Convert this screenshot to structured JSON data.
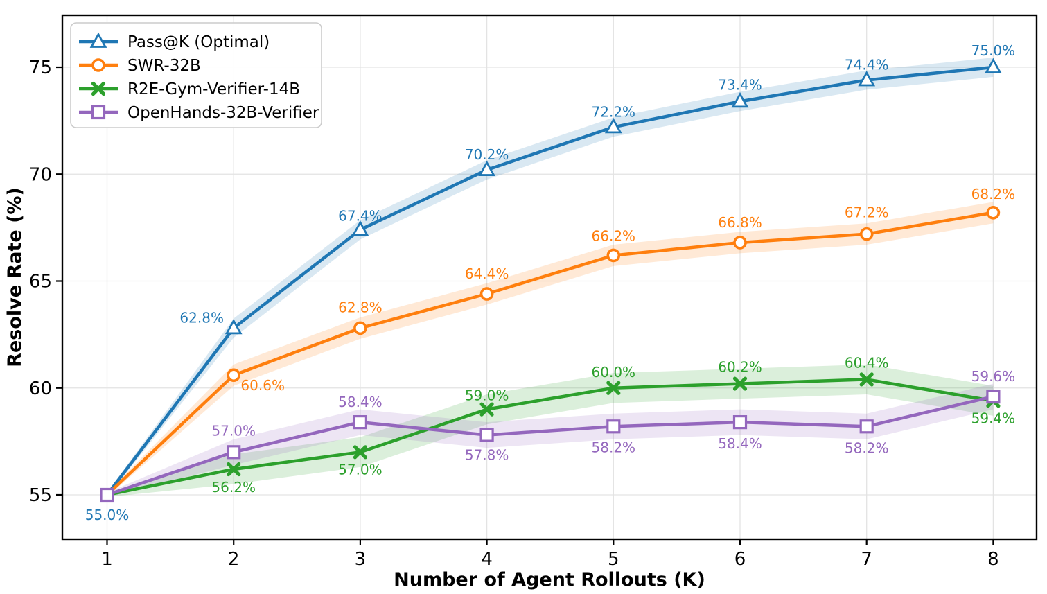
{
  "chart_data": {
    "type": "line",
    "title": "",
    "xlabel": "Number of Agent Rollouts (K)",
    "ylabel": "Resolve Rate (%)",
    "x": [
      1,
      2,
      3,
      4,
      5,
      6,
      7,
      8
    ],
    "x_tick_labels": [
      "1",
      "2",
      "3",
      "4",
      "5",
      "6",
      "7",
      "8"
    ],
    "y_tick_values": [
      55,
      60,
      65,
      70,
      75
    ],
    "y_tick_labels": [
      "55",
      "60",
      "65",
      "70",
      "75"
    ],
    "xlim": [
      0.64,
      8.34
    ],
    "ylim": [
      52.9,
      77.4
    ],
    "grid": true,
    "legend_position": "upper-left",
    "grid_color": "#e3e3e3",
    "spine_color": "#000000",
    "legend_border_color": "#cccccc",
    "series": [
      {
        "name": "Pass@K (Optimal)",
        "color": "#1f77b4",
        "marker": "triangle",
        "marker_first": false,
        "values": [
          55.0,
          62.8,
          67.4,
          70.2,
          72.2,
          73.4,
          74.4,
          75.0
        ],
        "labels": [
          "55.0%",
          "62.8%",
          "67.4%",
          "70.2%",
          "72.2%",
          "73.4%",
          "74.4%",
          "75.0%"
        ],
        "label_offsets": [
          [
            0,
            36
          ],
          [
            -46,
            -8
          ],
          [
            0,
            -13
          ],
          [
            0,
            -15
          ],
          [
            0,
            -15
          ],
          [
            0,
            -17
          ],
          [
            0,
            -15
          ],
          [
            0,
            -17
          ]
        ],
        "band_halfwidths": [
          0.1,
          0.45,
          0.45,
          0.45,
          0.45,
          0.45,
          0.45,
          0.45
        ]
      },
      {
        "name": "SWR-32B",
        "color": "#ff7f0e",
        "marker": "circle",
        "marker_first": false,
        "values": [
          55.0,
          60.6,
          62.8,
          64.4,
          66.2,
          66.8,
          67.2,
          68.2
        ],
        "labels": [
          null,
          "60.6%",
          "62.8%",
          "64.4%",
          "66.2%",
          "66.8%",
          "67.2%",
          "68.2%"
        ],
        "label_offsets": [
          null,
          [
            42,
            22
          ],
          [
            0,
            -23
          ],
          [
            0,
            -22
          ],
          [
            0,
            -21
          ],
          [
            0,
            -22
          ],
          [
            0,
            -24
          ],
          [
            0,
            -20
          ]
        ],
        "band_halfwidths": [
          0.1,
          0.5,
          0.5,
          0.5,
          0.5,
          0.5,
          0.5,
          0.5
        ]
      },
      {
        "name": "R2E-Gym-Verifier-14B",
        "color": "#2ca02c",
        "marker": "x",
        "marker_first": false,
        "values": [
          55.0,
          56.2,
          57.0,
          59.0,
          60.0,
          60.2,
          60.4,
          59.4
        ],
        "labels": [
          null,
          "56.2%",
          "57.0%",
          "59.0%",
          "60.0%",
          "60.2%",
          "60.4%",
          "59.4%"
        ],
        "label_offsets": [
          null,
          [
            0,
            33
          ],
          [
            0,
            32
          ],
          [
            0,
            -13
          ],
          [
            0,
            -16
          ],
          [
            0,
            -17
          ],
          [
            0,
            -17
          ],
          [
            0,
            32
          ]
        ],
        "band_halfwidths": [
          0.1,
          0.7,
          0.7,
          0.7,
          0.7,
          0.7,
          0.7,
          0.7
        ]
      },
      {
        "name": "OpenHands-32B-Verifier",
        "color": "#9467bd",
        "marker": "square",
        "marker_first": true,
        "values": [
          55.0,
          57.0,
          58.4,
          57.8,
          58.2,
          58.4,
          58.2,
          59.6
        ],
        "labels": [
          null,
          "57.0%",
          "58.4%",
          "57.8%",
          "58.2%",
          "58.4%",
          "58.2%",
          "59.6%"
        ],
        "label_offsets": [
          null,
          [
            0,
            -24
          ],
          [
            0,
            -22
          ],
          [
            0,
            36
          ],
          [
            0,
            37
          ],
          [
            0,
            38
          ],
          [
            0,
            38
          ],
          [
            0,
            -22
          ]
        ],
        "band_halfwidths": [
          0.1,
          0.6,
          0.6,
          0.6,
          0.6,
          0.6,
          0.6,
          0.6
        ]
      }
    ]
  }
}
